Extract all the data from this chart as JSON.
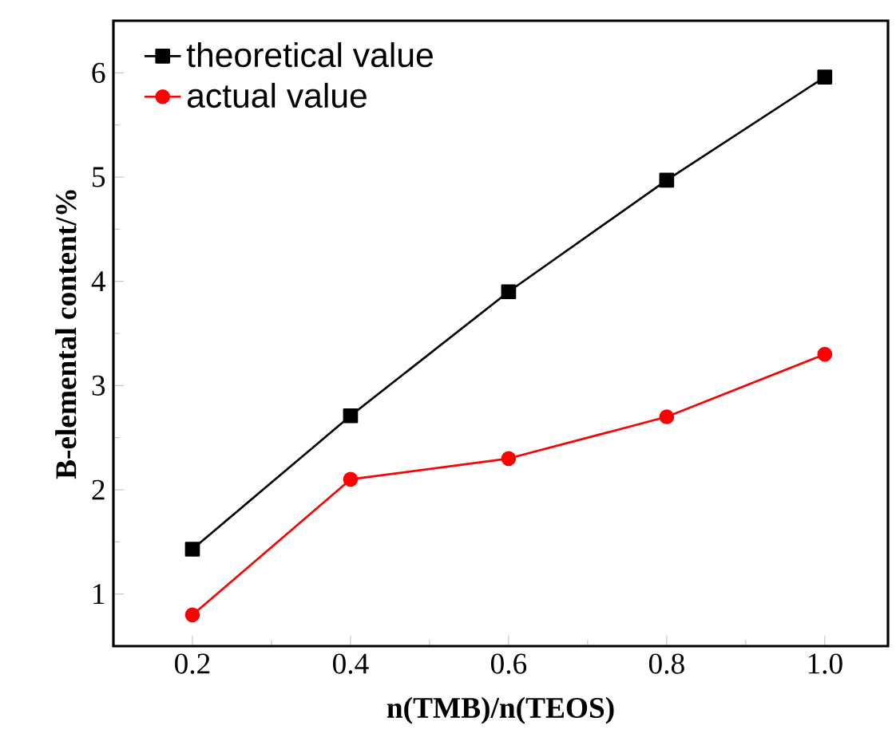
{
  "chart_data": {
    "type": "line",
    "xlabel": "n(TMB)/n(TEOS)",
    "ylabel": "B-elemental content/%",
    "xlim": [
      0.1,
      1.08
    ],
    "xticks": [
      {
        "value": 0.2,
        "label": "0.2"
      },
      {
        "value": 0.4,
        "label": "0.4"
      },
      {
        "value": 0.6,
        "label": "0.6"
      },
      {
        "value": 0.8,
        "label": "0.8"
      },
      {
        "value": 1.0,
        "label": "1.0"
      }
    ],
    "ylim": [
      0.5,
      6.5
    ],
    "yticks": [
      1,
      2,
      3,
      4,
      5,
      6
    ],
    "x": [
      0.2,
      0.4,
      0.6,
      0.8,
      1.0
    ],
    "series": [
      {
        "name": "theoretical value",
        "color": "#000000",
        "marker": "square",
        "values": [
          1.43,
          2.71,
          3.9,
          4.97,
          5.96
        ]
      },
      {
        "name": "actual value",
        "color": "#ff0000",
        "marker": "circle",
        "values": [
          0.8,
          2.1,
          2.3,
          2.7,
          3.3
        ]
      }
    ],
    "legend": "top left",
    "grid": false,
    "line_style": "solid"
  }
}
